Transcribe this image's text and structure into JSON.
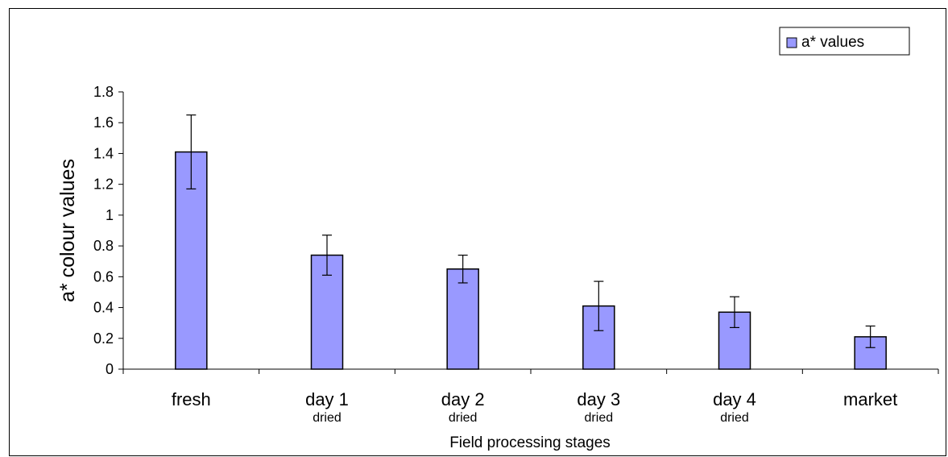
{
  "chart_data": {
    "type": "bar",
    "categories": [
      "fresh",
      "day 1",
      "day 2",
      "day 3",
      "day 4",
      "market"
    ],
    "category_sublabels": [
      "",
      "dried",
      "dried",
      "dried",
      "dried",
      ""
    ],
    "series": [
      {
        "name": "a* values",
        "values": [
          1.41,
          0.74,
          0.65,
          0.41,
          0.37,
          0.21
        ],
        "error": [
          0.24,
          0.13,
          0.09,
          0.16,
          0.1,
          0.07
        ]
      }
    ],
    "xlabel": "Field processing stages",
    "ylabel": "a* colour values",
    "ylim": [
      0,
      1.8
    ],
    "yticks": [
      0,
      0.2,
      0.4,
      0.6,
      0.8,
      1,
      1.2,
      1.4,
      1.6,
      1.8
    ],
    "ytick_labels": [
      "0",
      "0.2",
      "0.4",
      "0.6",
      "0.8",
      "1",
      "1.2",
      "1.4",
      "1.6",
      "1.8"
    ],
    "grid": false,
    "legend_position": "top-right",
    "colors": {
      "bar_fill": "#9999ff",
      "bar_stroke": "#000000",
      "axis": "#000000"
    }
  }
}
